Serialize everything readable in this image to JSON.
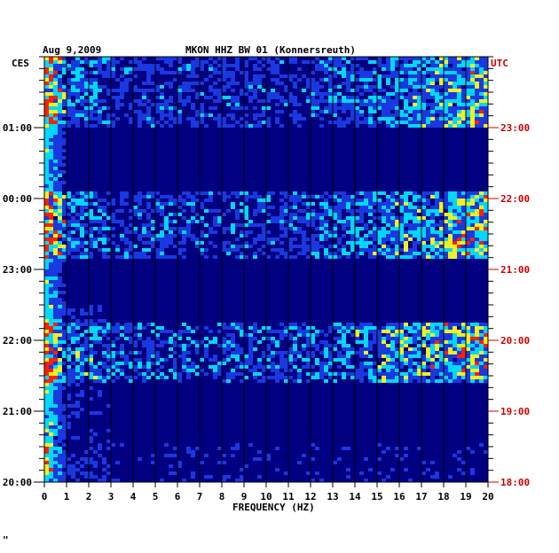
{
  "chart_data": {
    "type": "heatmap",
    "title": "MKON HHZ BW 01 (Konnersreuth)",
    "date": "Aug 9,2009",
    "left_timezone": "CES",
    "right_timezone": "UTC",
    "left_time_labels": [
      "01:00",
      "00:00",
      "23:00",
      "22:00",
      "21:00",
      "20:00"
    ],
    "right_time_labels": [
      "23:00",
      "22:00",
      "21:00",
      "20:00",
      "19:00",
      "18:00"
    ],
    "xlabel": "FREQUENCY (HZ)",
    "xlim": [
      0,
      20
    ],
    "xticks": [
      "0",
      "1",
      "2",
      "3",
      "4",
      "5",
      "6",
      "7",
      "8",
      "9",
      "10",
      "11",
      "12",
      "13",
      "14",
      "15",
      "16",
      "17",
      "18",
      "19",
      "20"
    ],
    "colors": {
      "background": "#000080",
      "blue": "#1a38e0",
      "cyan": "#00d8ff",
      "yellow": "#f0f020",
      "red": "#ff2000",
      "grid": "#000000",
      "utc_label": "#cc0000"
    }
  },
  "footer_mark": "\""
}
